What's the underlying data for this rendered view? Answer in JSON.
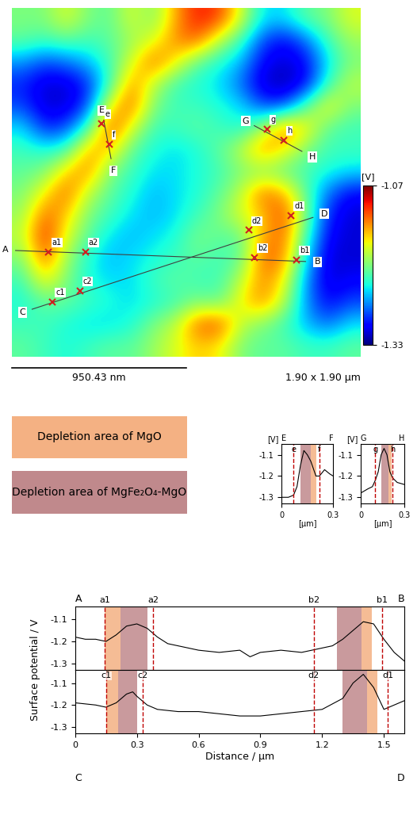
{
  "chart_data": [
    {
      "type": "heatmap",
      "size": 1.9,
      "size_label": "1.90 x 1.90 μm",
      "tick_labels": false,
      "cells": [
        [
          -1.2,
          -1.2,
          -1.17,
          -1.2,
          -1.21,
          -1.17,
          -1.2,
          -1.14,
          -1.1,
          -1.11,
          -1.17,
          -1.24,
          -1.24,
          -1.21,
          -1.2,
          -1.17
        ],
        [
          -1.21,
          -1.22,
          -1.21,
          -1.22,
          -1.21,
          -1.19,
          -1.17,
          -1.13,
          -1.12,
          -1.18,
          -1.22,
          -1.28,
          -1.3,
          -1.27,
          -1.22,
          -1.19
        ],
        [
          -1.26,
          -1.28,
          -1.27,
          -1.25,
          -1.22,
          -1.17,
          -1.12,
          -1.16,
          -1.21,
          -1.23,
          -1.25,
          -1.3,
          -1.31,
          -1.3,
          -1.24,
          -1.2
        ],
        [
          -1.29,
          -1.31,
          -1.31,
          -1.29,
          -1.22,
          -1.13,
          -1.18,
          -1.22,
          -1.23,
          -1.24,
          -1.27,
          -1.31,
          -1.32,
          -1.3,
          -1.22,
          -1.18
        ],
        [
          -1.28,
          -1.31,
          -1.31,
          -1.28,
          -1.16,
          -1.12,
          -1.2,
          -1.22,
          -1.22,
          -1.23,
          -1.24,
          -1.28,
          -1.28,
          -1.21,
          -1.16,
          -1.2
        ],
        [
          -1.24,
          -1.29,
          -1.28,
          -1.22,
          -1.11,
          -1.17,
          -1.22,
          -1.22,
          -1.21,
          -1.22,
          -1.23,
          -1.19,
          -1.12,
          -1.16,
          -1.21,
          -1.22
        ],
        [
          -1.22,
          -1.23,
          -1.22,
          -1.14,
          -1.15,
          -1.21,
          -1.23,
          -1.24,
          -1.23,
          -1.21,
          -1.18,
          -1.13,
          -1.16,
          -1.2,
          -1.22,
          -1.22
        ],
        [
          -1.21,
          -1.2,
          -1.15,
          -1.13,
          -1.2,
          -1.22,
          -1.24,
          -1.24,
          -1.23,
          -1.22,
          -1.2,
          -1.2,
          -1.21,
          -1.22,
          -1.23,
          -1.24
        ],
        [
          -1.2,
          -1.16,
          -1.12,
          -1.18,
          -1.21,
          -1.23,
          -1.25,
          -1.24,
          -1.23,
          -1.21,
          -1.18,
          -1.12,
          -1.14,
          -1.21,
          -1.27,
          -1.3
        ],
        [
          -1.19,
          -1.12,
          -1.15,
          -1.2,
          -1.22,
          -1.24,
          -1.25,
          -1.24,
          -1.22,
          -1.2,
          -1.17,
          -1.15,
          -1.11,
          -1.2,
          -1.29,
          -1.31
        ],
        [
          -1.18,
          -1.1,
          -1.17,
          -1.21,
          -1.24,
          -1.25,
          -1.24,
          -1.23,
          -1.2,
          -1.21,
          -1.21,
          -1.14,
          -1.12,
          -1.22,
          -1.3,
          -1.31
        ],
        [
          -1.2,
          -1.12,
          -1.19,
          -1.23,
          -1.25,
          -1.24,
          -1.23,
          -1.22,
          -1.21,
          -1.22,
          -1.21,
          -1.12,
          -1.13,
          -1.24,
          -1.31,
          -1.31
        ],
        [
          -1.22,
          -1.16,
          -1.2,
          -1.23,
          -1.24,
          -1.24,
          -1.22,
          -1.21,
          -1.22,
          -1.22,
          -1.18,
          -1.13,
          -1.16,
          -1.26,
          -1.31,
          -1.3
        ],
        [
          -1.23,
          -1.21,
          -1.21,
          -1.22,
          -1.23,
          -1.24,
          -1.23,
          -1.22,
          -1.2,
          -1.21,
          -1.16,
          -1.13,
          -1.18,
          -1.26,
          -1.3,
          -1.28
        ],
        [
          -1.22,
          -1.22,
          -1.23,
          -1.24,
          -1.24,
          -1.23,
          -1.2,
          -1.18,
          -1.12,
          -1.11,
          -1.18,
          -1.2,
          -1.22,
          -1.25,
          -1.27,
          -1.24
        ],
        [
          -1.21,
          -1.22,
          -1.23,
          -1.22,
          -1.21,
          -1.21,
          -1.19,
          -1.17,
          -1.15,
          -1.16,
          -1.2,
          -1.21,
          -1.21,
          -1.22,
          -1.22,
          -1.21
        ]
      ],
      "colorbar": {
        "range": [
          -1.33,
          -1.07
        ],
        "ticks": [
          -1.07,
          -1.33
        ],
        "label": "[V]"
      },
      "scale_bar": {
        "length": 0.95043,
        "label": "950.43 nm"
      },
      "lines": [
        {
          "start": "A",
          "end": "B",
          "from": [
            0.02,
            1.32
          ],
          "to": [
            1.6,
            1.38
          ]
        },
        {
          "start": "C",
          "end": "D",
          "from": [
            0.11,
            1.64
          ],
          "to": [
            1.64,
            1.14
          ]
        },
        {
          "start": "E",
          "end": "F",
          "from": [
            0.5,
            0.61
          ],
          "to": [
            0.54,
            0.82
          ]
        },
        {
          "start": "G",
          "end": "H",
          "from": [
            1.32,
            0.64
          ],
          "to": [
            1.58,
            0.78
          ]
        }
      ],
      "markers": [
        {
          "label": "a1",
          "x": 0.2,
          "y": 1.33
        },
        {
          "label": "a2",
          "x": 0.4,
          "y": 1.33
        },
        {
          "label": "b2",
          "x": 1.32,
          "y": 1.36
        },
        {
          "label": "b1",
          "x": 1.55,
          "y": 1.37
        },
        {
          "label": "c1",
          "x": 0.22,
          "y": 1.6
        },
        {
          "label": "c2",
          "x": 0.37,
          "y": 1.54
        },
        {
          "label": "d2",
          "x": 1.29,
          "y": 1.21
        },
        {
          "label": "d1",
          "x": 1.52,
          "y": 1.13
        },
        {
          "label": "e",
          "x": 0.49,
          "y": 0.63
        },
        {
          "label": "f",
          "x": 0.53,
          "y": 0.74
        },
        {
          "label": "g",
          "x": 1.39,
          "y": 0.66
        },
        {
          "label": "h",
          "x": 1.48,
          "y": 0.72
        }
      ]
    },
    {
      "type": "line",
      "start_label": "E",
      "end_label": "F",
      "xlabel": "[μm]",
      "ylabel": "[V]",
      "x": [
        0,
        0.04,
        0.07,
        0.09,
        0.11,
        0.13,
        0.15,
        0.17,
        0.2,
        0.22,
        0.25,
        0.28,
        0.3
      ],
      "values": [
        -1.3,
        -1.3,
        -1.29,
        -1.25,
        -1.15,
        -1.08,
        -1.1,
        -1.13,
        -1.2,
        -1.2,
        -1.17,
        -1.19,
        -1.2
      ],
      "xlim": [
        0,
        0.3
      ],
      "xticks": [
        0,
        0.3
      ],
      "ylim": [
        -1.33,
        -1.05
      ],
      "yticks": [
        -1.1,
        -1.2,
        -1.3
      ],
      "markers": [
        {
          "label": "e",
          "x": 0.07
        },
        {
          "label": "f",
          "x": 0.22
        }
      ],
      "regions": [
        {
          "from": 0.11,
          "to": 0.17,
          "color": "#c0898c"
        },
        {
          "from": 0.17,
          "to": 0.2,
          "color": "#f4b183"
        }
      ]
    },
    {
      "type": "line",
      "start_label": "G",
      "end_label": "H",
      "xlabel": "[μm]",
      "ylabel": "[V]",
      "x": [
        0,
        0.05,
        0.08,
        0.1,
        0.12,
        0.14,
        0.16,
        0.18,
        0.2,
        0.22,
        0.25,
        0.3
      ],
      "values": [
        -1.28,
        -1.26,
        -1.25,
        -1.22,
        -1.18,
        -1.1,
        -1.07,
        -1.1,
        -1.18,
        -1.21,
        -1.23,
        -1.24
      ],
      "xlim": [
        0,
        0.3
      ],
      "xticks": [
        0,
        0.3
      ],
      "ylim": [
        -1.33,
        -1.05
      ],
      "yticks": [
        -1.1,
        -1.2,
        -1.3
      ],
      "markers": [
        {
          "label": "g",
          "x": 0.1
        },
        {
          "label": "h",
          "x": 0.22
        }
      ],
      "regions": [
        {
          "from": 0.14,
          "to": 0.19,
          "color": "#c0898c"
        },
        {
          "from": 0.19,
          "to": 0.21,
          "color": "#f4b183"
        }
      ]
    },
    {
      "type": "line",
      "start_label": "A",
      "end_label": "B",
      "ylabel": "Surface potential / V",
      "tick_labels": "y",
      "x": [
        0,
        0.05,
        0.1,
        0.15,
        0.2,
        0.25,
        0.3,
        0.35,
        0.4,
        0.45,
        0.5,
        0.6,
        0.7,
        0.8,
        0.85,
        0.9,
        1.0,
        1.1,
        1.2,
        1.25,
        1.3,
        1.35,
        1.4,
        1.45,
        1.5,
        1.55,
        1.6
      ],
      "values": [
        -1.18,
        -1.19,
        -1.19,
        -1.2,
        -1.17,
        -1.13,
        -1.12,
        -1.14,
        -1.18,
        -1.21,
        -1.22,
        -1.24,
        -1.25,
        -1.24,
        -1.27,
        -1.25,
        -1.24,
        -1.25,
        -1.23,
        -1.22,
        -1.19,
        -1.15,
        -1.11,
        -1.12,
        -1.19,
        -1.25,
        -1.29
      ],
      "xlim": [
        0,
        1.6
      ],
      "xticks": [
        0,
        0.3,
        0.6,
        0.9,
        1.2,
        1.5
      ],
      "ylim": [
        -1.33,
        -1.04
      ],
      "yticks": [
        -1.1,
        -1.2,
        -1.3
      ],
      "markers": [
        {
          "label": "a1",
          "x": 0.145
        },
        {
          "label": "a2",
          "x": 0.38
        },
        {
          "label": "b2",
          "x": 1.16
        },
        {
          "label": "b1",
          "x": 1.49
        }
      ],
      "regions": [
        {
          "from": 0.145,
          "to": 0.22,
          "color": "#f4b183"
        },
        {
          "from": 0.22,
          "to": 0.35,
          "color": "#c0898c"
        },
        {
          "from": 1.27,
          "to": 1.39,
          "color": "#c0898c"
        },
        {
          "from": 1.39,
          "to": 1.44,
          "color": "#f4b183"
        }
      ]
    },
    {
      "type": "line",
      "start_label": "C",
      "end_label": "D",
      "xlabel": "Distance / μm",
      "x": [
        0,
        0.1,
        0.15,
        0.2,
        0.25,
        0.28,
        0.3,
        0.35,
        0.4,
        0.5,
        0.6,
        0.7,
        0.8,
        0.9,
        1.0,
        1.1,
        1.2,
        1.3,
        1.35,
        1.4,
        1.45,
        1.5,
        1.55,
        1.6
      ],
      "values": [
        -1.19,
        -1.2,
        -1.21,
        -1.19,
        -1.15,
        -1.14,
        -1.16,
        -1.2,
        -1.22,
        -1.23,
        -1.23,
        -1.24,
        -1.25,
        -1.25,
        -1.24,
        -1.23,
        -1.22,
        -1.17,
        -1.1,
        -1.06,
        -1.12,
        -1.22,
        -1.2,
        -1.18
      ],
      "xlim": [
        0,
        1.6
      ],
      "xticks": [
        0,
        0.3,
        0.6,
        0.9,
        1.2,
        1.5
      ],
      "ylim": [
        -1.33,
        -1.04
      ],
      "yticks": [
        -1.1,
        -1.2,
        -1.3
      ],
      "markers": [
        {
          "label": "c1",
          "x": 0.15
        },
        {
          "label": "c2",
          "x": 0.33
        },
        {
          "label": "d2",
          "x": 1.16
        },
        {
          "label": "d1",
          "x": 1.52
        }
      ],
      "regions": [
        {
          "from": 0.15,
          "to": 0.21,
          "color": "#f4b183"
        },
        {
          "from": 0.21,
          "to": 0.3,
          "color": "#c0898c"
        },
        {
          "from": 1.3,
          "to": 1.42,
          "color": "#c0898c"
        },
        {
          "from": 1.42,
          "to": 1.47,
          "color": "#f4b183"
        }
      ]
    }
  ],
  "legend": [
    {
      "label": "Depletion area of MgO",
      "color": "#f4b183"
    },
    {
      "label": "Depletion area of MgFe₂O₄-MgO",
      "color": "#c0898c"
    }
  ]
}
